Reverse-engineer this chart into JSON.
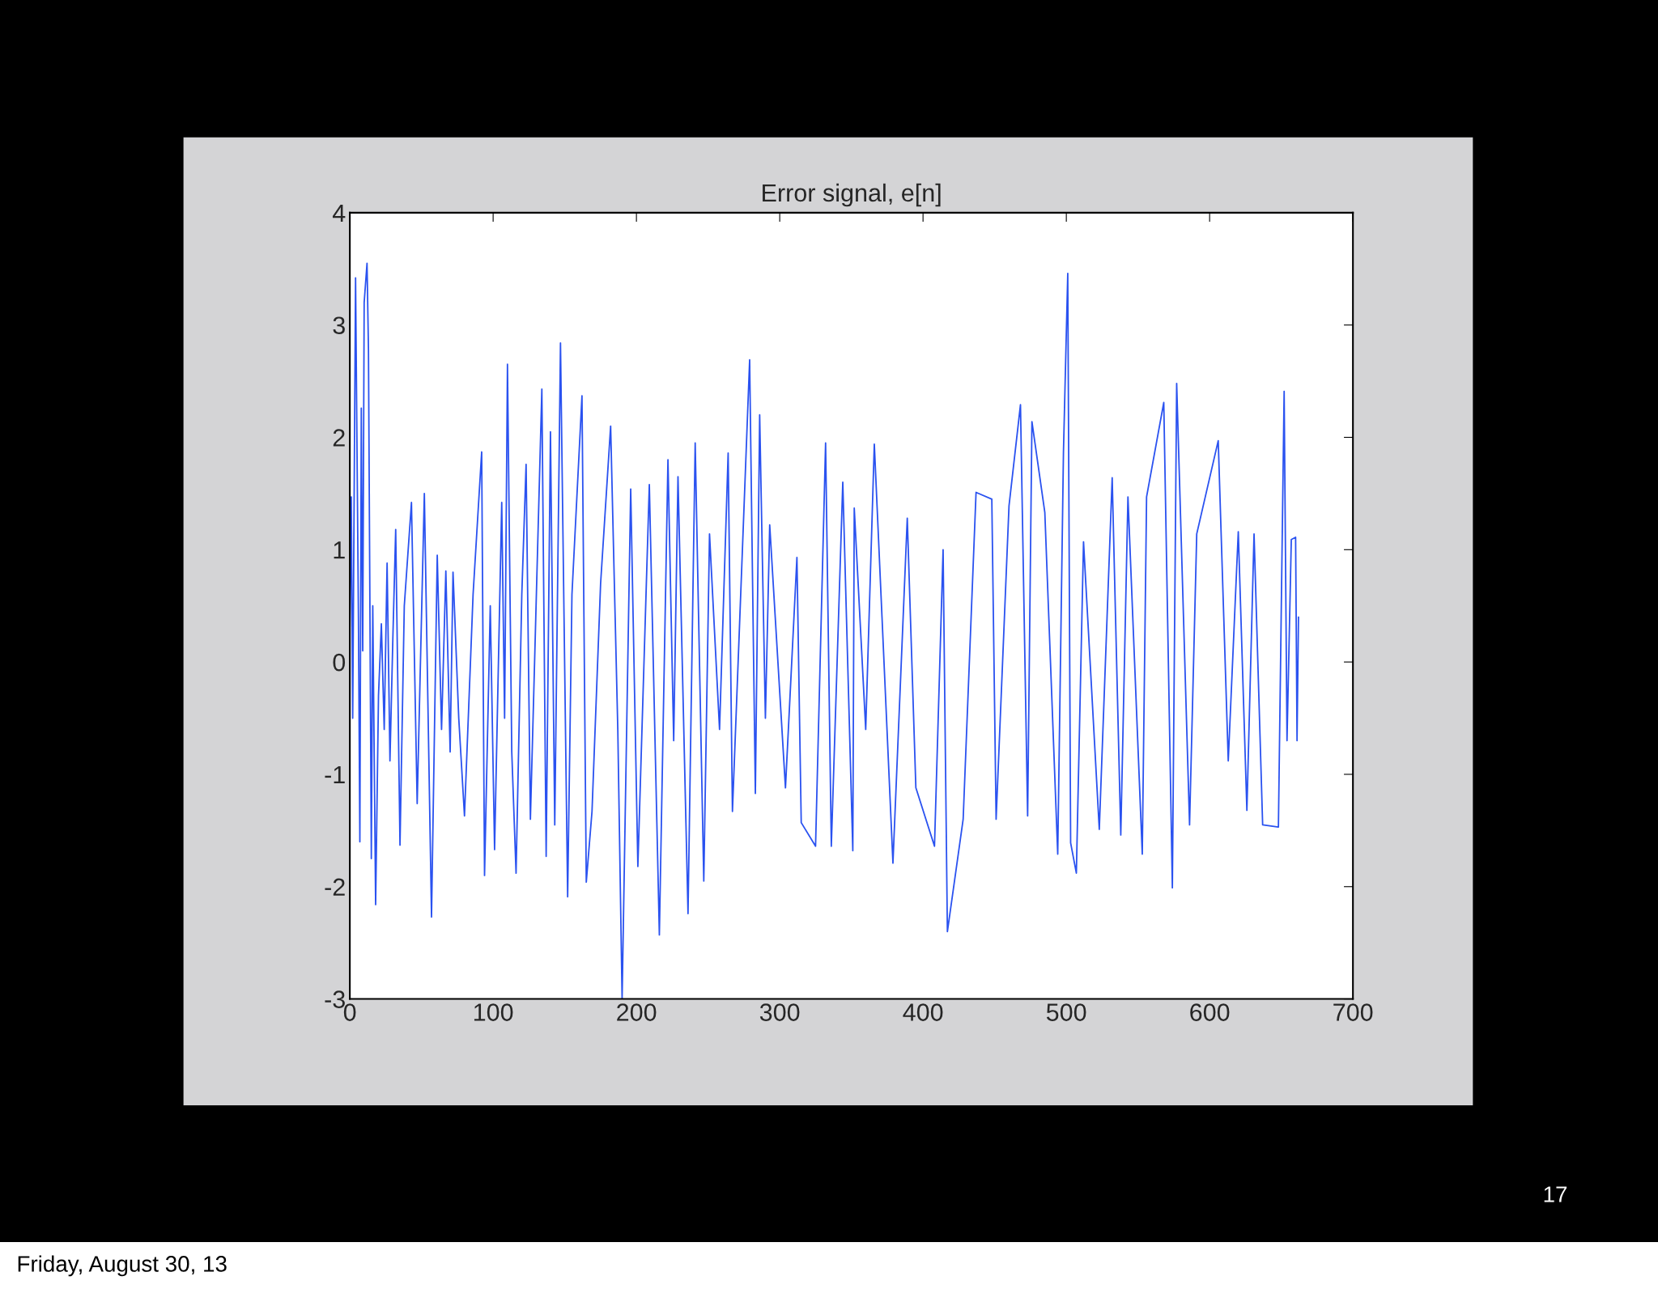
{
  "chart_data": {
    "type": "line",
    "title": "Error signal, e[n]",
    "x": [
      0,
      1,
      2,
      4,
      6,
      7,
      8,
      9,
      10,
      12,
      13,
      15,
      16,
      18,
      20,
      22,
      24,
      26,
      28,
      30,
      32,
      35,
      38,
      43,
      47,
      52,
      57,
      61,
      64,
      67,
      70,
      72,
      76,
      80,
      86,
      92,
      94,
      98,
      101,
      106,
      108,
      110,
      113,
      116,
      120,
      123,
      126,
      134,
      137,
      140,
      143,
      147,
      152,
      155,
      162,
      165,
      169,
      175,
      182,
      187,
      190,
      196,
      201,
      209,
      216,
      222,
      226,
      229,
      236,
      241,
      247,
      251,
      258,
      264,
      267,
      279,
      283,
      286,
      290,
      293,
      304,
      312,
      315,
      325,
      332,
      336,
      344,
      351,
      352,
      360,
      366,
      379,
      389,
      395,
      408,
      414,
      417,
      428,
      437,
      448,
      451,
      460,
      468,
      473,
      476,
      485,
      494,
      498,
      501,
      503,
      507,
      512,
      523,
      532,
      538,
      543,
      553,
      556,
      568,
      574,
      577,
      586,
      591,
      606,
      613,
      620,
      626,
      631,
      637,
      648,
      652,
      654,
      657,
      660,
      661,
      662
    ],
    "series": [
      {
        "color": "#2a52f0",
        "values": [
          0.3,
          1.47,
          -0.5,
          3.42,
          0.4,
          -1.6,
          2.26,
          0.1,
          3.2,
          3.55,
          2.78,
          -1.75,
          0.5,
          -2.16,
          -0.3,
          0.34,
          -0.6,
          0.88,
          -0.88,
          0.2,
          1.18,
          -1.63,
          0.5,
          1.42,
          -1.26,
          1.5,
          -2.27,
          0.95,
          -0.6,
          0.81,
          -0.8,
          0.8,
          -0.5,
          -1.37,
          0.6,
          1.87,
          -1.9,
          0.5,
          -1.67,
          1.42,
          -0.5,
          2.65,
          -0.8,
          -1.88,
          0.6,
          1.76,
          -1.4,
          2.43,
          -1.73,
          2.05,
          -1.45,
          2.84,
          -2.09,
          0.6,
          2.37,
          -1.96,
          -1.33,
          0.7,
          2.1,
          -0.6,
          -3.0,
          1.54,
          -1.82,
          1.58,
          -2.43,
          1.8,
          -0.7,
          1.65,
          -2.24,
          1.95,
          -1.95,
          1.14,
          -0.6,
          1.86,
          -1.33,
          2.69,
          -1.17,
          2.2,
          -0.5,
          1.22,
          -1.12,
          0.93,
          -1.43,
          -1.64,
          1.95,
          -1.64,
          1.6,
          -1.68,
          1.37,
          -0.6,
          1.94,
          -1.79,
          1.28,
          -1.12,
          -1.64,
          1.0,
          -2.4,
          -1.4,
          1.51,
          1.45,
          -1.4,
          1.39,
          2.29,
          -1.37,
          2.14,
          1.33,
          -1.71,
          1.87,
          3.46,
          -1.61,
          -1.88,
          1.07,
          -1.49,
          1.64,
          -1.54,
          1.47,
          -1.71,
          1.47,
          2.31,
          -2.01,
          2.48,
          -1.45,
          1.14,
          1.97,
          -0.88,
          1.16,
          -1.32,
          1.14,
          -1.45,
          -1.47,
          2.41,
          -0.7,
          1.09,
          1.11,
          -0.7,
          0.4
        ]
      }
    ],
    "xlim": [
      0,
      700
    ],
    "xticks": [
      0,
      100,
      200,
      300,
      400,
      500,
      600,
      700
    ],
    "ylim": [
      -3,
      4
    ],
    "yticks": [
      -3,
      -2,
      -1,
      0,
      1,
      2,
      3,
      4
    ],
    "grid": false,
    "legend": false,
    "annotations": [
      "17",
      "Friday, August 30, 13"
    ]
  }
}
